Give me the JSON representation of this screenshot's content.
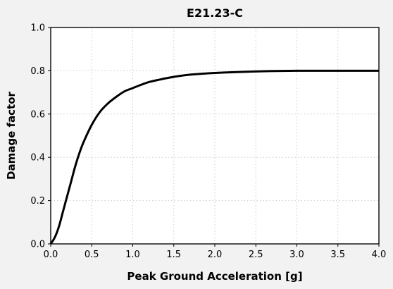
{
  "chart_data": {
    "type": "line",
    "title": "E21.23-C",
    "xlabel": "Peak Ground Acceleration [g]",
    "ylabel": "Damage factor",
    "xlim": [
      0,
      4
    ],
    "ylim": [
      0,
      1
    ],
    "xticks": [
      "0.0",
      "0.5",
      "1.0",
      "1.5",
      "2.0",
      "2.5",
      "3.0",
      "3.5",
      "4.0"
    ],
    "yticks": [
      "0.0",
      "0.2",
      "0.4",
      "0.6",
      "0.8",
      "1.0"
    ],
    "grid": true,
    "series": [
      {
        "color": "#000000",
        "x": [
          0,
          0.05,
          0.1,
          0.15,
          0.2,
          0.25,
          0.3,
          0.35,
          0.4,
          0.5,
          0.6,
          0.7,
          0.8,
          0.9,
          1.0,
          1.1,
          1.2,
          1.3,
          1.5,
          1.7,
          2.0,
          2.5,
          3.0,
          3.5,
          4.0
        ],
        "y": [
          0,
          0.03,
          0.08,
          0.15,
          0.22,
          0.29,
          0.36,
          0.42,
          0.47,
          0.55,
          0.61,
          0.65,
          0.68,
          0.705,
          0.72,
          0.735,
          0.748,
          0.757,
          0.772,
          0.782,
          0.79,
          0.797,
          0.8,
          0.8,
          0.8
        ]
      }
    ]
  }
}
